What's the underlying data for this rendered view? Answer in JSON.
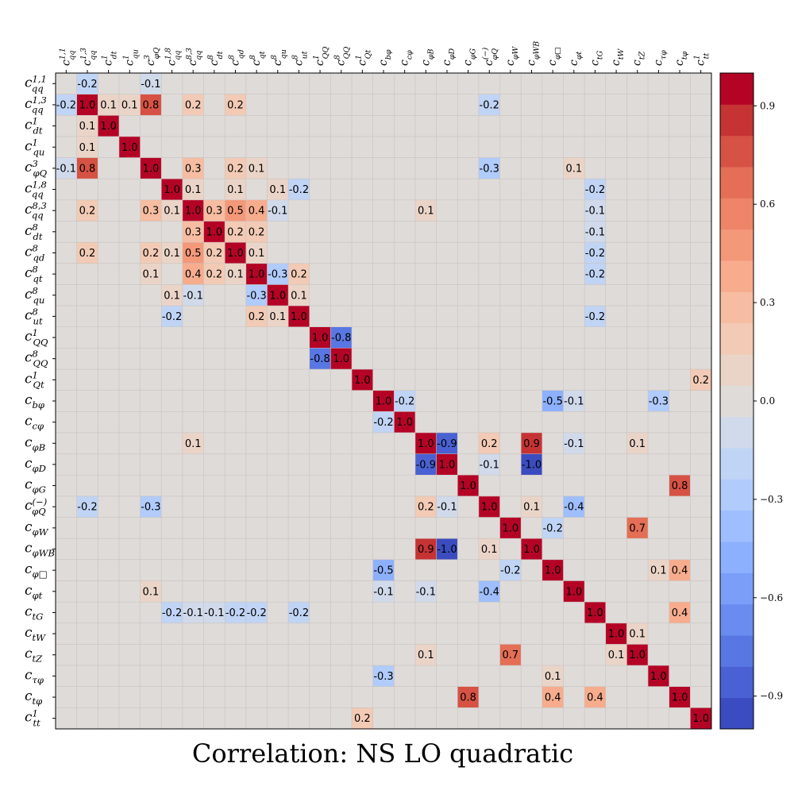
{
  "chart_data": {
    "type": "heatmap",
    "title": "Correlation: NS  LO quadratic",
    "labels": [
      {
        "id": "cqq11",
        "base": "c",
        "sub": "qq",
        "sup": "1,1"
      },
      {
        "id": "cqq13",
        "base": "c",
        "sub": "qq",
        "sup": "1,3"
      },
      {
        "id": "cdt1",
        "base": "c",
        "sub": "dt",
        "sup": "1"
      },
      {
        "id": "cqu1",
        "base": "c",
        "sub": "qu",
        "sup": "1"
      },
      {
        "id": "cphiQ3",
        "base": "c",
        "sub": "φQ",
        "sup": "3"
      },
      {
        "id": "cqq18",
        "base": "c",
        "sub": "qq",
        "sup": "1,8"
      },
      {
        "id": "cqq83",
        "base": "c",
        "sub": "qq",
        "sup": "8,3"
      },
      {
        "id": "cdt8",
        "base": "c",
        "sub": "dt",
        "sup": "8"
      },
      {
        "id": "cqd8",
        "base": "c",
        "sub": "qd",
        "sup": "8"
      },
      {
        "id": "cqt8",
        "base": "c",
        "sub": "qt",
        "sup": "8"
      },
      {
        "id": "cqu8",
        "base": "c",
        "sub": "qu",
        "sup": "8"
      },
      {
        "id": "cut8",
        "base": "c",
        "sub": "ut",
        "sup": "8"
      },
      {
        "id": "cQQ1",
        "base": "c",
        "sub": "QQ",
        "sup": "1"
      },
      {
        "id": "cQQ8",
        "base": "c",
        "sub": "QQ",
        "sup": "8"
      },
      {
        "id": "cQt1",
        "base": "c",
        "sub": "Qt",
        "sup": "1"
      },
      {
        "id": "cbphi",
        "base": "c",
        "sub": "bφ",
        "sup": ""
      },
      {
        "id": "ccphi",
        "base": "c",
        "sub": "cφ",
        "sup": ""
      },
      {
        "id": "cphiB",
        "base": "c",
        "sub": "φB",
        "sup": ""
      },
      {
        "id": "cphiD",
        "base": "c",
        "sub": "φD",
        "sup": ""
      },
      {
        "id": "cphiG",
        "base": "c",
        "sub": "φG",
        "sup": ""
      },
      {
        "id": "cphiQm",
        "base": "c",
        "sub": "φQ",
        "sup": "(−)"
      },
      {
        "id": "cphiW",
        "base": "c",
        "sub": "φW",
        "sup": ""
      },
      {
        "id": "cphiWB",
        "base": "c",
        "sub": "φWB",
        "sup": ""
      },
      {
        "id": "cphibox",
        "base": "c",
        "sub": "φ□",
        "sup": ""
      },
      {
        "id": "cphit",
        "base": "c",
        "sub": "φt",
        "sup": ""
      },
      {
        "id": "ctG",
        "base": "c",
        "sub": "tG",
        "sup": ""
      },
      {
        "id": "ctW",
        "base": "c",
        "sub": "tW",
        "sup": ""
      },
      {
        "id": "ctZ",
        "base": "c",
        "sub": "tZ",
        "sup": ""
      },
      {
        "id": "ctauphi",
        "base": "c",
        "sub": "τφ",
        "sup": ""
      },
      {
        "id": "ctphi",
        "base": "c",
        "sub": "tφ",
        "sup": ""
      },
      {
        "id": "ctt1",
        "base": "c",
        "sub": "tt",
        "sup": "1"
      }
    ],
    "values": [
      [
        0,
        1,
        -0.2
      ],
      [
        0,
        4,
        -0.1
      ],
      [
        1,
        1,
        1.0
      ],
      [
        1,
        2,
        0.1
      ],
      [
        1,
        3,
        0.1
      ],
      [
        1,
        4,
        0.8
      ],
      [
        1,
        6,
        0.2
      ],
      [
        1,
        8,
        0.2
      ],
      [
        1,
        20,
        -0.2
      ],
      [
        2,
        2,
        1.0
      ],
      [
        3,
        3,
        1.0
      ],
      [
        4,
        4,
        1.0
      ],
      [
        4,
        6,
        0.3
      ],
      [
        4,
        8,
        0.2
      ],
      [
        4,
        9,
        0.1
      ],
      [
        4,
        20,
        -0.3
      ],
      [
        4,
        24,
        0.1
      ],
      [
        5,
        5,
        1.0
      ],
      [
        5,
        6,
        0.1
      ],
      [
        5,
        8,
        0.1
      ],
      [
        5,
        10,
        0.1
      ],
      [
        5,
        11,
        -0.2
      ],
      [
        5,
        25,
        -0.2
      ],
      [
        6,
        6,
        1.0
      ],
      [
        6,
        7,
        0.3
      ],
      [
        6,
        8,
        0.5
      ],
      [
        6,
        9,
        0.4
      ],
      [
        6,
        10,
        -0.1
      ],
      [
        6,
        17,
        0.1
      ],
      [
        6,
        25,
        -0.1
      ],
      [
        7,
        7,
        1.0
      ],
      [
        7,
        8,
        0.2
      ],
      [
        7,
        9,
        0.2
      ],
      [
        7,
        25,
        -0.1
      ],
      [
        8,
        8,
        1.0
      ],
      [
        8,
        9,
        0.1
      ],
      [
        8,
        25,
        -0.2
      ],
      [
        9,
        9,
        1.0
      ],
      [
        9,
        10,
        -0.3
      ],
      [
        9,
        11,
        0.2
      ],
      [
        9,
        25,
        -0.2
      ],
      [
        10,
        10,
        1.0
      ],
      [
        10,
        11,
        0.1
      ],
      [
        11,
        11,
        1.0
      ],
      [
        11,
        25,
        -0.2
      ],
      [
        12,
        12,
        1.0
      ],
      [
        12,
        13,
        -0.8
      ],
      [
        13,
        13,
        1.0
      ],
      [
        14,
        14,
        1.0
      ],
      [
        14,
        30,
        0.2
      ],
      [
        15,
        15,
        1.0
      ],
      [
        15,
        16,
        -0.2
      ],
      [
        15,
        23,
        -0.5
      ],
      [
        15,
        24,
        -0.1
      ],
      [
        15,
        28,
        -0.3
      ],
      [
        16,
        16,
        1.0
      ],
      [
        17,
        17,
        1.0
      ],
      [
        17,
        18,
        -0.9
      ],
      [
        17,
        20,
        0.2
      ],
      [
        17,
        22,
        0.9
      ],
      [
        17,
        24,
        -0.1
      ],
      [
        17,
        27,
        0.1
      ],
      [
        18,
        18,
        1.0
      ],
      [
        18,
        20,
        -0.1
      ],
      [
        18,
        22,
        -1.0
      ],
      [
        19,
        19,
        1.0
      ],
      [
        19,
        29,
        0.8
      ],
      [
        20,
        20,
        1.0
      ],
      [
        20,
        22,
        0.1
      ],
      [
        20,
        24,
        -0.4
      ],
      [
        21,
        21,
        1.0
      ],
      [
        21,
        23,
        -0.2
      ],
      [
        21,
        27,
        0.7
      ],
      [
        22,
        22,
        1.0
      ],
      [
        23,
        23,
        1.0
      ],
      [
        23,
        28,
        0.1
      ],
      [
        23,
        29,
        0.4
      ],
      [
        24,
        24,
        1.0
      ],
      [
        25,
        25,
        1.0
      ],
      [
        25,
        29,
        0.4
      ],
      [
        26,
        26,
        1.0
      ],
      [
        26,
        27,
        0.1
      ],
      [
        27,
        27,
        1.0
      ],
      [
        28,
        28,
        1.0
      ],
      [
        29,
        29,
        1.0
      ],
      [
        30,
        30,
        1.0
      ]
    ],
    "colorbar": {
      "range": [
        -1.0,
        1.0
      ],
      "ticks": [
        -0.9,
        -0.6,
        -0.3,
        0.0,
        0.3,
        0.6,
        0.9
      ],
      "tick_labels": [
        "−0.9",
        "−0.6",
        "−0.3",
        "0.0",
        "0.3",
        "0.6",
        "0.9"
      ],
      "colors": [
        "#3b4cc0",
        "#4961d2",
        "#5977e3",
        "#6a8bef",
        "#7b9ff9",
        "#8db0fe",
        "#9ebeff",
        "#b0cbfc",
        "#c0d4f5",
        "#d0daeb",
        "#dfdbd9",
        "#ead4c8",
        "#f2cab5",
        "#f6bda2",
        "#f7ac8e",
        "#f4987a",
        "#ee8468",
        "#e46e56",
        "#d65244",
        "#c53334",
        "#b40426"
      ]
    },
    "grid": true
  }
}
